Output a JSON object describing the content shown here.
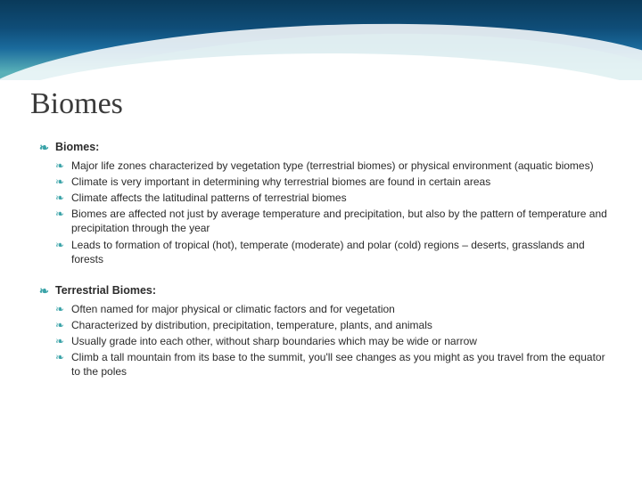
{
  "styling": {
    "slide_width": 720,
    "slide_height": 540,
    "background_color": "#ffffff",
    "header": {
      "height": 90,
      "gradient_colors": [
        "#0a3a5a",
        "#0f4d78",
        "#1a6a9c",
        "#58b0b8"
      ],
      "wave_accent_color": "#3aa3a8",
      "wave_white": "#ffffff"
    },
    "title_color": "#3b3b3b",
    "title_fontsize": 34,
    "title_font_family": "Georgia",
    "body_color": "#2b2b2b",
    "bullet_color": "#3aa3a8",
    "bullet_glyph": "❧",
    "section_head_fontsize": 12.5,
    "section_head_weight": 700,
    "sub_item_fontsize": 12,
    "line_height": 1.35
  },
  "title": "Biomes",
  "sections": [
    {
      "heading": "Biomes:",
      "items": [
        "Major life zones characterized by vegetation type (terrestrial biomes) or physical environment (aquatic biomes)",
        "Climate is very important in determining why terrestrial biomes are found in certain areas",
        "Climate affects the latitudinal patterns of terrestrial biomes",
        "Biomes are affected not just by average temperature and precipitation, but also by the pattern of temperature and precipitation through the year",
        "Leads to formation of tropical (hot), temperate (moderate) and polar (cold) regions – deserts, grasslands and forests"
      ]
    },
    {
      "heading": "Terrestrial Biomes:",
      "items": [
        "Often named for major physical or climatic factors and for vegetation",
        "Characterized by distribution, precipitation, temperature, plants, and animals",
        "Usually grade into each other, without sharp boundaries which may be wide or narrow",
        "Climb a tall mountain from its base to the summit, you'll see changes as you might as you travel from the equator to the poles"
      ]
    }
  ]
}
